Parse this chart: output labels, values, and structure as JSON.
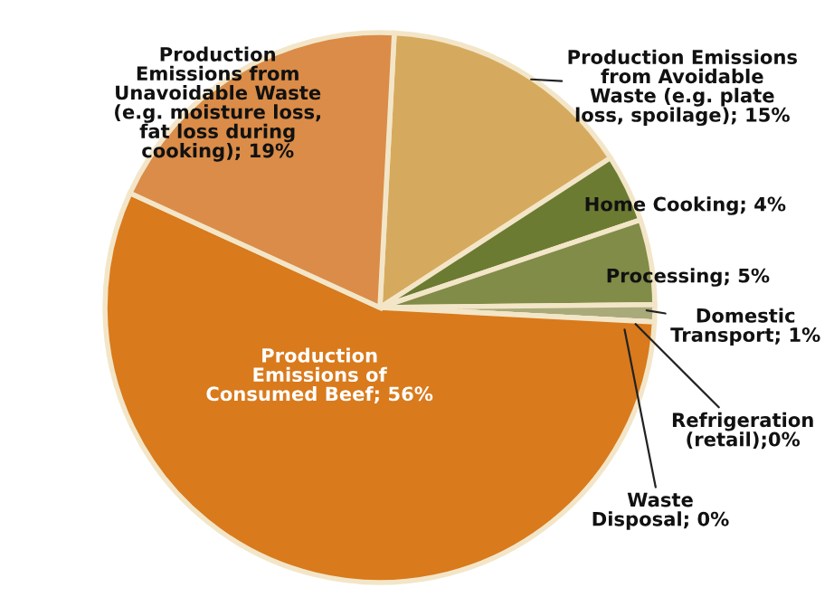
{
  "chart_data": {
    "type": "pie",
    "categories": [
      "Production Emissions\nfrom Avoidable\nWaste (e.g. plate\nloss, spoilage); 15%",
      "Home Cooking; 4%",
      "Processing; 5%",
      "Domestic\nTransport; 1%",
      "Refrigeration\n(retail);0%",
      "Waste\nDisposal; 0%",
      "Production\nEmissions of\nConsumed Beef; 56%",
      "Production\nEmissions from\nUnavoidable Waste\n(e.g. moisture loss,\nfat loss during\ncooking); 19%"
    ],
    "values": [
      15,
      4,
      5,
      1,
      0,
      0,
      56,
      19
    ],
    "colors": [
      "#d6aa5e",
      "#6c7b32",
      "#808c48",
      "#a9aa7a",
      "#b8b88c",
      "#b8b88c",
      "#d97a1c",
      "#da8c48"
    ]
  }
}
